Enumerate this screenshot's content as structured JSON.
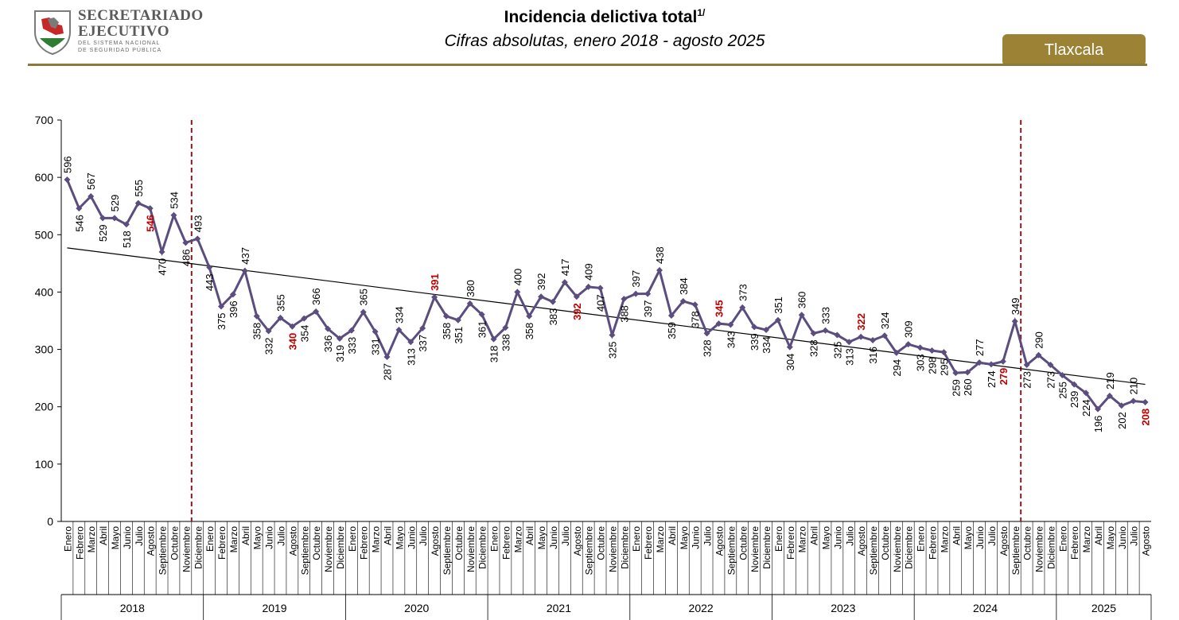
{
  "header": {
    "logo_line1": "SECRETARIADO",
    "logo_line2": "EJECUTIVO",
    "logo_line3": "DEL SISTEMA NACIONAL",
    "logo_line4": "DE SEGURIDAD PÚBLICA",
    "title": "Incidencia delictiva total",
    "title_sup": "1/",
    "subtitle": "Cifras absolutas, enero 2018 - agosto 2025",
    "state": "Tlaxcala"
  },
  "colors": {
    "line": "#5b4d7e",
    "trend": "#000000",
    "divider": "#8b1a1a",
    "highlight_label": "#c00000",
    "accent": "#9b8234"
  },
  "chart_data": {
    "type": "line",
    "title": "Incidencia delictiva total",
    "subtitle": "Cifras absolutas, enero 2018 - agosto 2025",
    "ylim": [
      0,
      700
    ],
    "yticks": [
      0,
      100,
      200,
      300,
      400,
      500,
      600,
      700
    ],
    "months": [
      "Enero",
      "Febrero",
      "Marzo",
      "Abril",
      "Mayo",
      "Junio",
      "Julio",
      "Agosto",
      "Septiembre",
      "Octubre",
      "Noviembre",
      "Diciembre"
    ],
    "years": [
      {
        "label": "2018",
        "values": [
          596,
          546,
          567,
          529,
          529,
          518,
          555,
          546,
          470,
          534,
          486,
          493
        ]
      },
      {
        "label": "2019",
        "values": [
          443,
          375,
          396,
          437,
          358,
          332,
          355,
          340,
          354,
          366,
          336,
          319
        ]
      },
      {
        "label": "2020",
        "values": [
          333,
          365,
          331,
          287,
          334,
          313,
          337,
          391,
          358,
          351,
          380,
          361
        ]
      },
      {
        "label": "2021",
        "values": [
          318,
          338,
          400,
          358,
          392,
          383,
          417,
          392,
          409,
          407,
          325,
          388
        ]
      },
      {
        "label": "2022",
        "values": [
          397,
          397,
          438,
          359,
          384,
          378,
          328,
          345,
          343,
          373,
          339,
          334
        ]
      },
      {
        "label": "2023",
        "values": [
          351,
          304,
          360,
          328,
          333,
          325,
          313,
          322,
          316,
          324,
          294,
          309
        ]
      },
      {
        "label": "2024",
        "values": [
          303,
          298,
          295,
          259,
          260,
          277,
          274,
          279,
          349,
          273,
          290,
          273
        ]
      },
      {
        "label": "2025",
        "values": [
          255,
          239,
          224,
          196,
          219,
          202,
          210,
          208
        ]
      }
    ],
    "highlighted_points": [
      7,
      19,
      31,
      43,
      55,
      67,
      79,
      91
    ],
    "trend_line": {
      "start": 477,
      "end": 239
    },
    "dividers_after_index": [
      10,
      80
    ],
    "grid": false,
    "legend": "none"
  }
}
